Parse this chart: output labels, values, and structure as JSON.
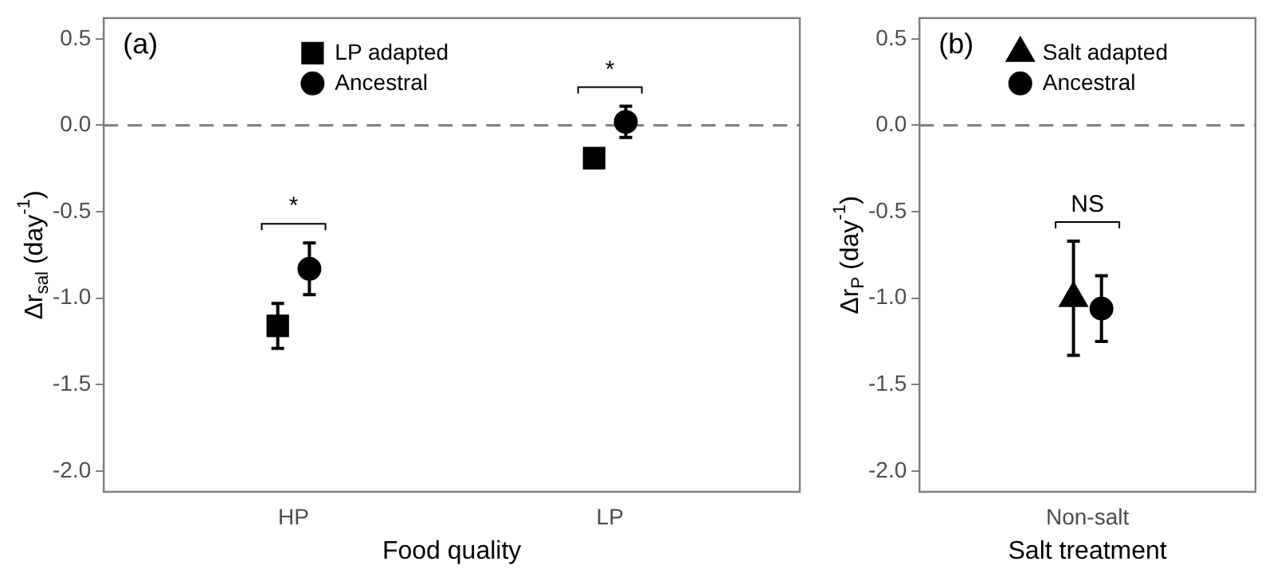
{
  "chart_data": [
    {
      "type": "scatter",
      "title": "(a)",
      "xlabel": "Food quality",
      "ylabel": "Δr$_{sal}$ (day$^{-1}$)",
      "categories": [
        "HP",
        "LP"
      ],
      "series": [
        {
          "name": "LP adapted",
          "color": "#000000",
          "marker": "square",
          "values": [
            -1.16,
            -0.19
          ],
          "errors": [
            0.13,
            null
          ]
        },
        {
          "name": "Ancestral",
          "color": "#000000",
          "marker": "circle",
          "values": [
            -0.83,
            0.02
          ],
          "errors": [
            0.15,
            0.09
          ]
        }
      ],
      "ylim": [
        -2.12,
        0.62
      ],
      "yticks": [
        0.5,
        {
          "value": 0,
          "label": "0.0"
        },
        -0.5,
        {
          "value": -1,
          "label": "-1.0"
        },
        -1.5,
        {
          "value": -2,
          "label": "-2.0"
        }
      ],
      "ref_lines": [
        {
          "axis": "y",
          "value": 0,
          "color": "#808080",
          "line_style": "dashed"
        }
      ],
      "annotations": [
        "*",
        "*"
      ],
      "legend": "top",
      "grid": false
    },
    {
      "type": "scatter",
      "title": "(b)",
      "xlabel": "Salt treatment",
      "ylabel": "Δr$_{P}$ (day$^{-1}$)",
      "categories": [
        "Non-salt"
      ],
      "series": [
        {
          "name": "Salt adapted",
          "color": "#000000",
          "marker": "triangle",
          "values": [
            -1.0
          ],
          "errors": [
            0.33
          ]
        },
        {
          "name": "Ancestral",
          "color": "#000000",
          "marker": "circle",
          "values": [
            -1.06
          ],
          "errors": [
            0.19
          ]
        }
      ],
      "ylim": [
        -2.12,
        0.62
      ],
      "yticks": [
        0.5,
        {
          "value": 0,
          "label": "0.0"
        },
        -0.5,
        {
          "value": -1,
          "label": "-1.0"
        },
        -1.5,
        {
          "value": -2,
          "label": "-2.0"
        }
      ],
      "ref_lines": [
        {
          "axis": "y",
          "value": 0,
          "color": "#808080",
          "line_style": "dashed"
        }
      ],
      "annotations": [
        "NS"
      ],
      "legend": "top",
      "grid": false
    }
  ]
}
